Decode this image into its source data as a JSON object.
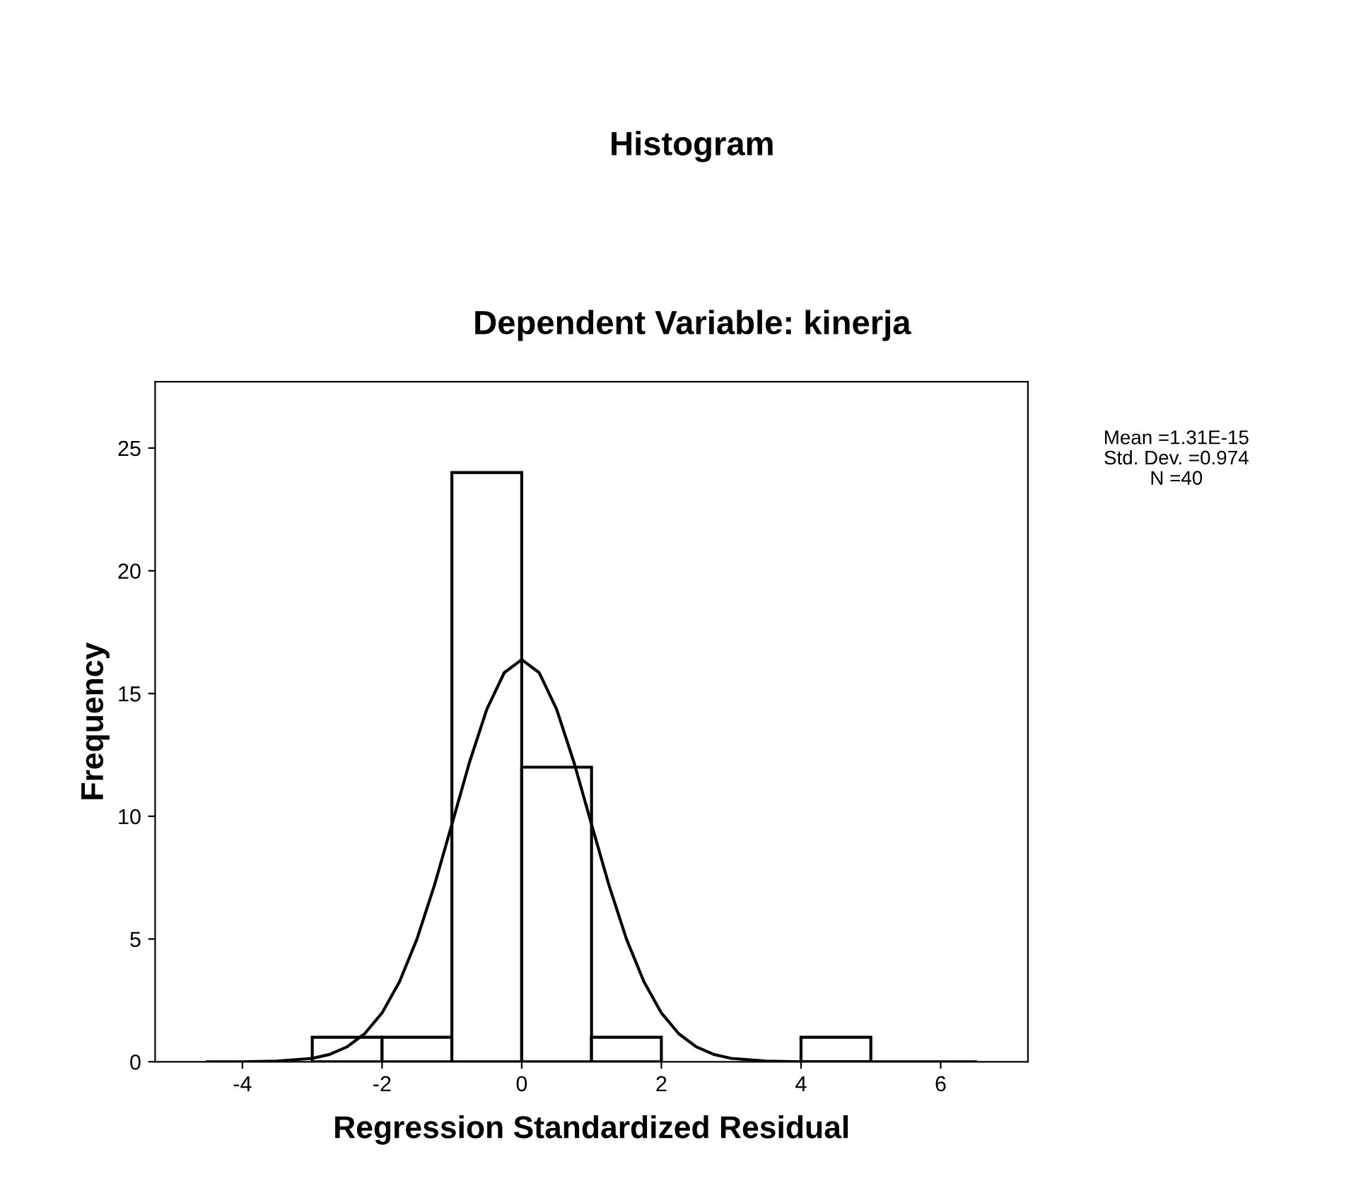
{
  "chart_data": {
    "type": "histogram",
    "title": "Histogram",
    "subtitle": "Dependent Variable: kinerja",
    "xlabel": "Regression Standardized Residual",
    "ylabel": "Frequency",
    "bins": [
      -3,
      -2,
      -1,
      0,
      1,
      2,
      3,
      4,
      5
    ],
    "values": [
      1,
      1,
      24,
      12,
      1,
      0,
      0,
      1
    ],
    "color": "#ffffff",
    "series": [
      {
        "type": "line",
        "color": "#000000",
        "x": [
          -4.5,
          -4,
          -3.5,
          -3,
          -2.75,
          -2.5,
          -2.25,
          -2,
          -1.75,
          -1.5,
          -1.25,
          -1,
          -0.75,
          -0.5,
          -0.25,
          0,
          0.25,
          0.5,
          0.75,
          1,
          1.25,
          1.5,
          1.75,
          2,
          2.25,
          2.5,
          2.75,
          3,
          3.5,
          4,
          5,
          6,
          6.5
        ],
        "values": [
          0,
          0,
          0.03,
          0.14,
          0.3,
          0.61,
          1.14,
          1.99,
          3.26,
          5.0,
          7.19,
          9.67,
          12.18,
          14.36,
          15.85,
          16.38,
          15.85,
          14.36,
          12.18,
          9.67,
          7.19,
          5.0,
          3.26,
          1.99,
          1.14,
          0.61,
          0.3,
          0.14,
          0.03,
          0,
          0,
          0,
          0
        ]
      }
    ],
    "annotations": [
      "Mean =1.31E-15",
      "Std. Dev. =0.974",
      "N =40"
    ],
    "xlim": [
      -5.25,
      7.25
    ],
    "ylim": [
      0,
      27.7
    ],
    "xticks": [
      -4,
      -2,
      0,
      2,
      4,
      6
    ],
    "yticks": [
      0,
      5,
      10,
      15,
      20,
      25
    ],
    "grid": false,
    "legend": false
  }
}
